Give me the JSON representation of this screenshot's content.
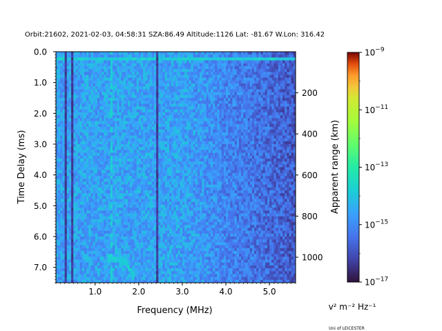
{
  "chart_data": {
    "type": "heatmap",
    "title": "Orbit:21602, 2021-02-03, 04:58:31 SZA:86.49 Altitude:1126 Lat: -81.67 W.Lon: 316.42",
    "xlabel": "Frequency (MHz)",
    "ylabel": "Time Delay (ms)",
    "y2label": "Apparent range (km)",
    "xlim": [
      0.1,
      5.6
    ],
    "ylim": [
      7.5,
      0.0
    ],
    "xticks": [
      1.0,
      2.0,
      3.0,
      4.0,
      5.0
    ],
    "xtick_labels": [
      "1.0",
      "2.0",
      "3.0",
      "4.0",
      "5.0"
    ],
    "yticks": [
      0.0,
      1.0,
      2.0,
      3.0,
      4.0,
      5.0,
      6.0,
      7.0
    ],
    "ytick_labels": [
      "0.0",
      "1.0",
      "2.0",
      "3.0",
      "4.0",
      "5.0",
      "6.0",
      "7.0"
    ],
    "y2ticks_km": [
      200,
      400,
      600,
      800,
      1000
    ],
    "y2tick_labels": [
      "200",
      "400",
      "600",
      "800",
      "1000"
    ],
    "colorbar": {
      "label": "v² m⁻² Hz⁻¹",
      "scale": "log",
      "colormap": "turbo",
      "range": [
        1e-17,
        1e-09
      ],
      "tick_exponents": [
        -17,
        -15,
        -13,
        -11,
        -9
      ],
      "tick_labels": [
        "10−17",
        "10−15",
        "10−13",
        "10−11",
        "10−9"
      ]
    },
    "features": {
      "dark_vertical_lines_mhz": [
        0.3,
        0.45,
        2.38
      ],
      "bright_vertical_line_mhz": 1.35,
      "top_row_bright_band_ms": [
        0.1,
        0.2
      ],
      "echo_trace": {
        "f_mhz": [
          1.3,
          1.5,
          1.7,
          1.85
        ],
        "delay_ms": [
          6.65,
          6.7,
          6.85,
          7.2
        ]
      }
    }
  },
  "footer": {
    "institution": "Uni of LEICESTER"
  }
}
